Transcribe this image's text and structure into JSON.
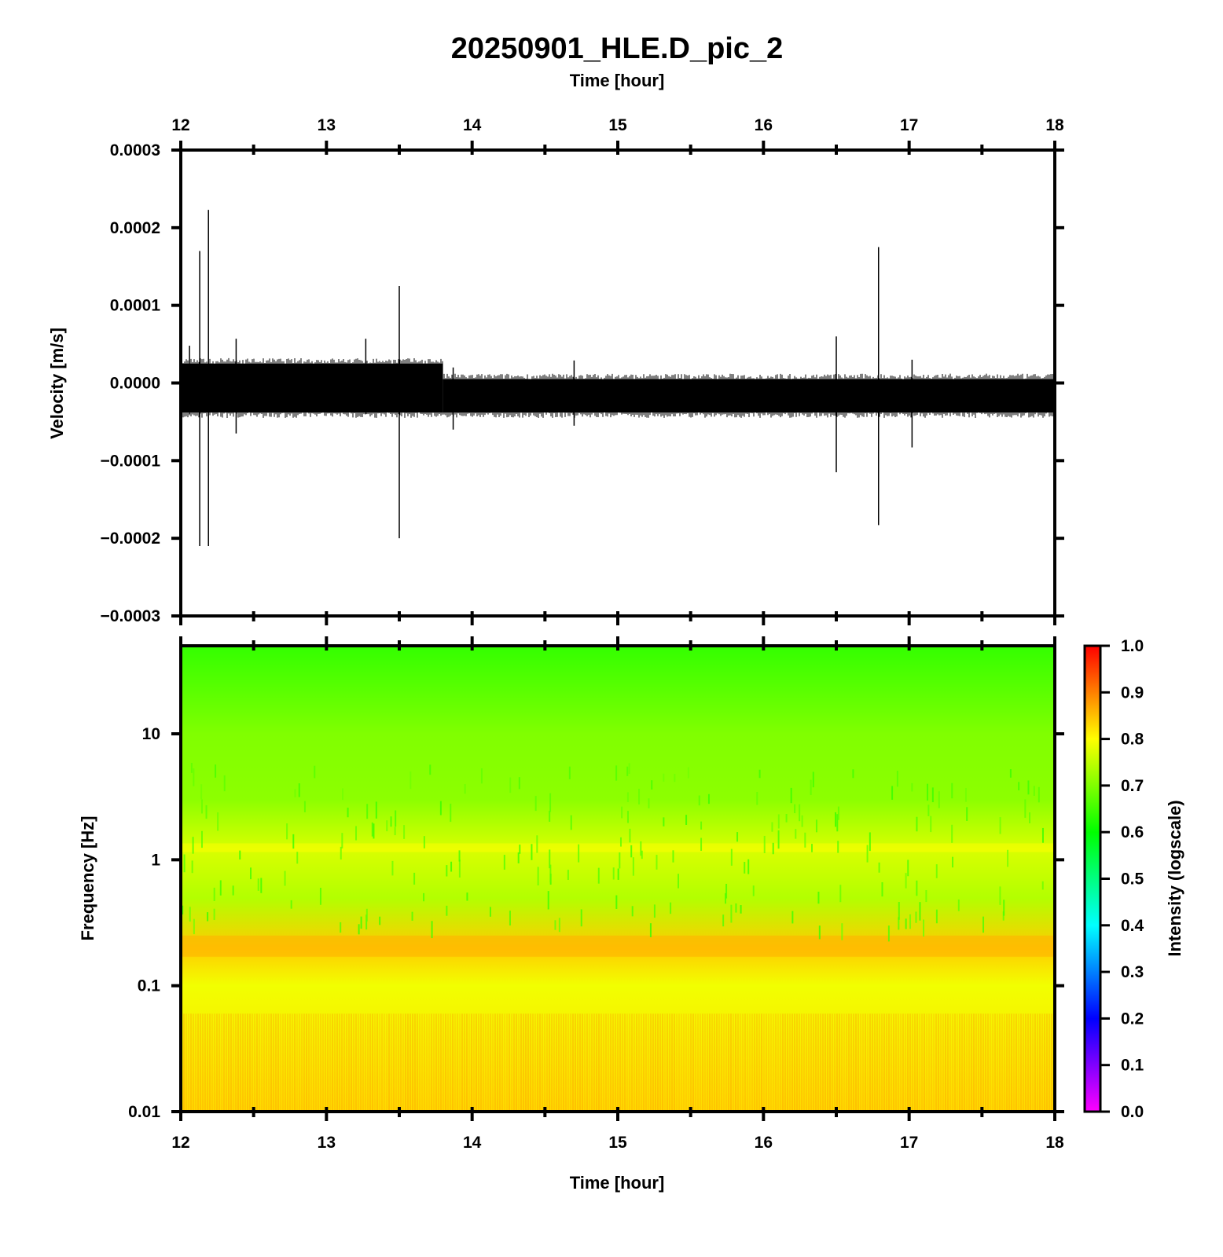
{
  "chart_data": [
    {
      "type": "line",
      "title": "20250901_HLE.D_pic_2",
      "xlabel": "Time [hour]",
      "ylabel": "Velocity [m/s]",
      "xlim": [
        12,
        18
      ],
      "ylim": [
        -0.0003,
        0.0003
      ],
      "x_ticks": [
        "12",
        "13",
        "14",
        "15",
        "16",
        "17",
        "18"
      ],
      "y_ticks": [
        "0.0003",
        "0.0002",
        "0.0001",
        "0.0000",
        "−0.0001",
        "−0.0002",
        "−0.0003"
      ],
      "series": [
        {
          "noise_band": [
            {
              "x": [
                12.0,
                13.8
              ],
              "y_min": -3.8e-05,
              "y_max": 2.5e-05
            },
            {
              "x": [
                13.8,
                18.0
              ],
              "y_min": -3.8e-05,
              "y_max": 5e-06
            }
          ],
          "spikes": [
            {
              "x": 12.13,
              "y_max": 0.00017,
              "y_min": -0.00021
            },
            {
              "x": 12.19,
              "y_max": 0.000223,
              "y_min": -0.00021
            },
            {
              "x": 12.06,
              "y_max": 4.8e-05,
              "y_min": -4e-05
            },
            {
              "x": 12.38,
              "y_max": 5.7e-05,
              "y_min": -6.5e-05
            },
            {
              "x": 13.27,
              "y_max": 5.7e-05,
              "y_min": -4e-05
            },
            {
              "x": 13.5,
              "y_max": 0.000125,
              "y_min": -0.0002
            },
            {
              "x": 13.87,
              "y_max": 2e-05,
              "y_min": -6e-05
            },
            {
              "x": 14.7,
              "y_max": 2.9e-05,
              "y_min": -5.5e-05
            },
            {
              "x": 16.5,
              "y_max": 6e-05,
              "y_min": -0.000115
            },
            {
              "x": 16.79,
              "y_max": 0.000175,
              "y_min": -0.000183
            },
            {
              "x": 17.02,
              "y_max": 3e-05,
              "y_min": -8.3e-05
            }
          ]
        }
      ],
      "grid": false,
      "line_color": "#000000"
    },
    {
      "type": "heatmap",
      "xlabel": "Time [hour]",
      "ylabel": "Frequency [Hz]",
      "xlim": [
        12,
        18
      ],
      "ylim": [
        0.01,
        50
      ],
      "y_scale": "log",
      "x_ticks": [
        "12",
        "13",
        "14",
        "15",
        "16",
        "17",
        "18"
      ],
      "y_ticks": [
        "10",
        "1",
        "0.1",
        "0.01"
      ],
      "colorbar": {
        "label": "Intensity (logscale)",
        "range": [
          0.0,
          1.0
        ],
        "ticks": [
          "1.0",
          "0.9",
          "0.8",
          "0.7",
          "0.6",
          "0.5",
          "0.4",
          "0.3",
          "0.2",
          "0.1",
          "0.0"
        ],
        "colors": [
          "#ff00ff",
          "#8000ff",
          "#0000ff",
          "#0080ff",
          "#00ffff",
          "#00ff80",
          "#00ff00",
          "#80ff00",
          "#ffff00",
          "#ff8000",
          "#ff0000"
        ]
      },
      "intensity_profile": [
        {
          "frequency": 50,
          "intensity": 0.64
        },
        {
          "frequency": 10,
          "intensity": 0.7
        },
        {
          "frequency": 3,
          "intensity": 0.71
        },
        {
          "frequency": 1.2,
          "intensity": 0.77
        },
        {
          "frequency": 0.5,
          "intensity": 0.74
        },
        {
          "frequency": 0.2,
          "intensity": 0.84
        },
        {
          "frequency": 0.1,
          "intensity": 0.79
        },
        {
          "frequency": 0.01,
          "intensity": 0.83
        }
      ]
    }
  ]
}
